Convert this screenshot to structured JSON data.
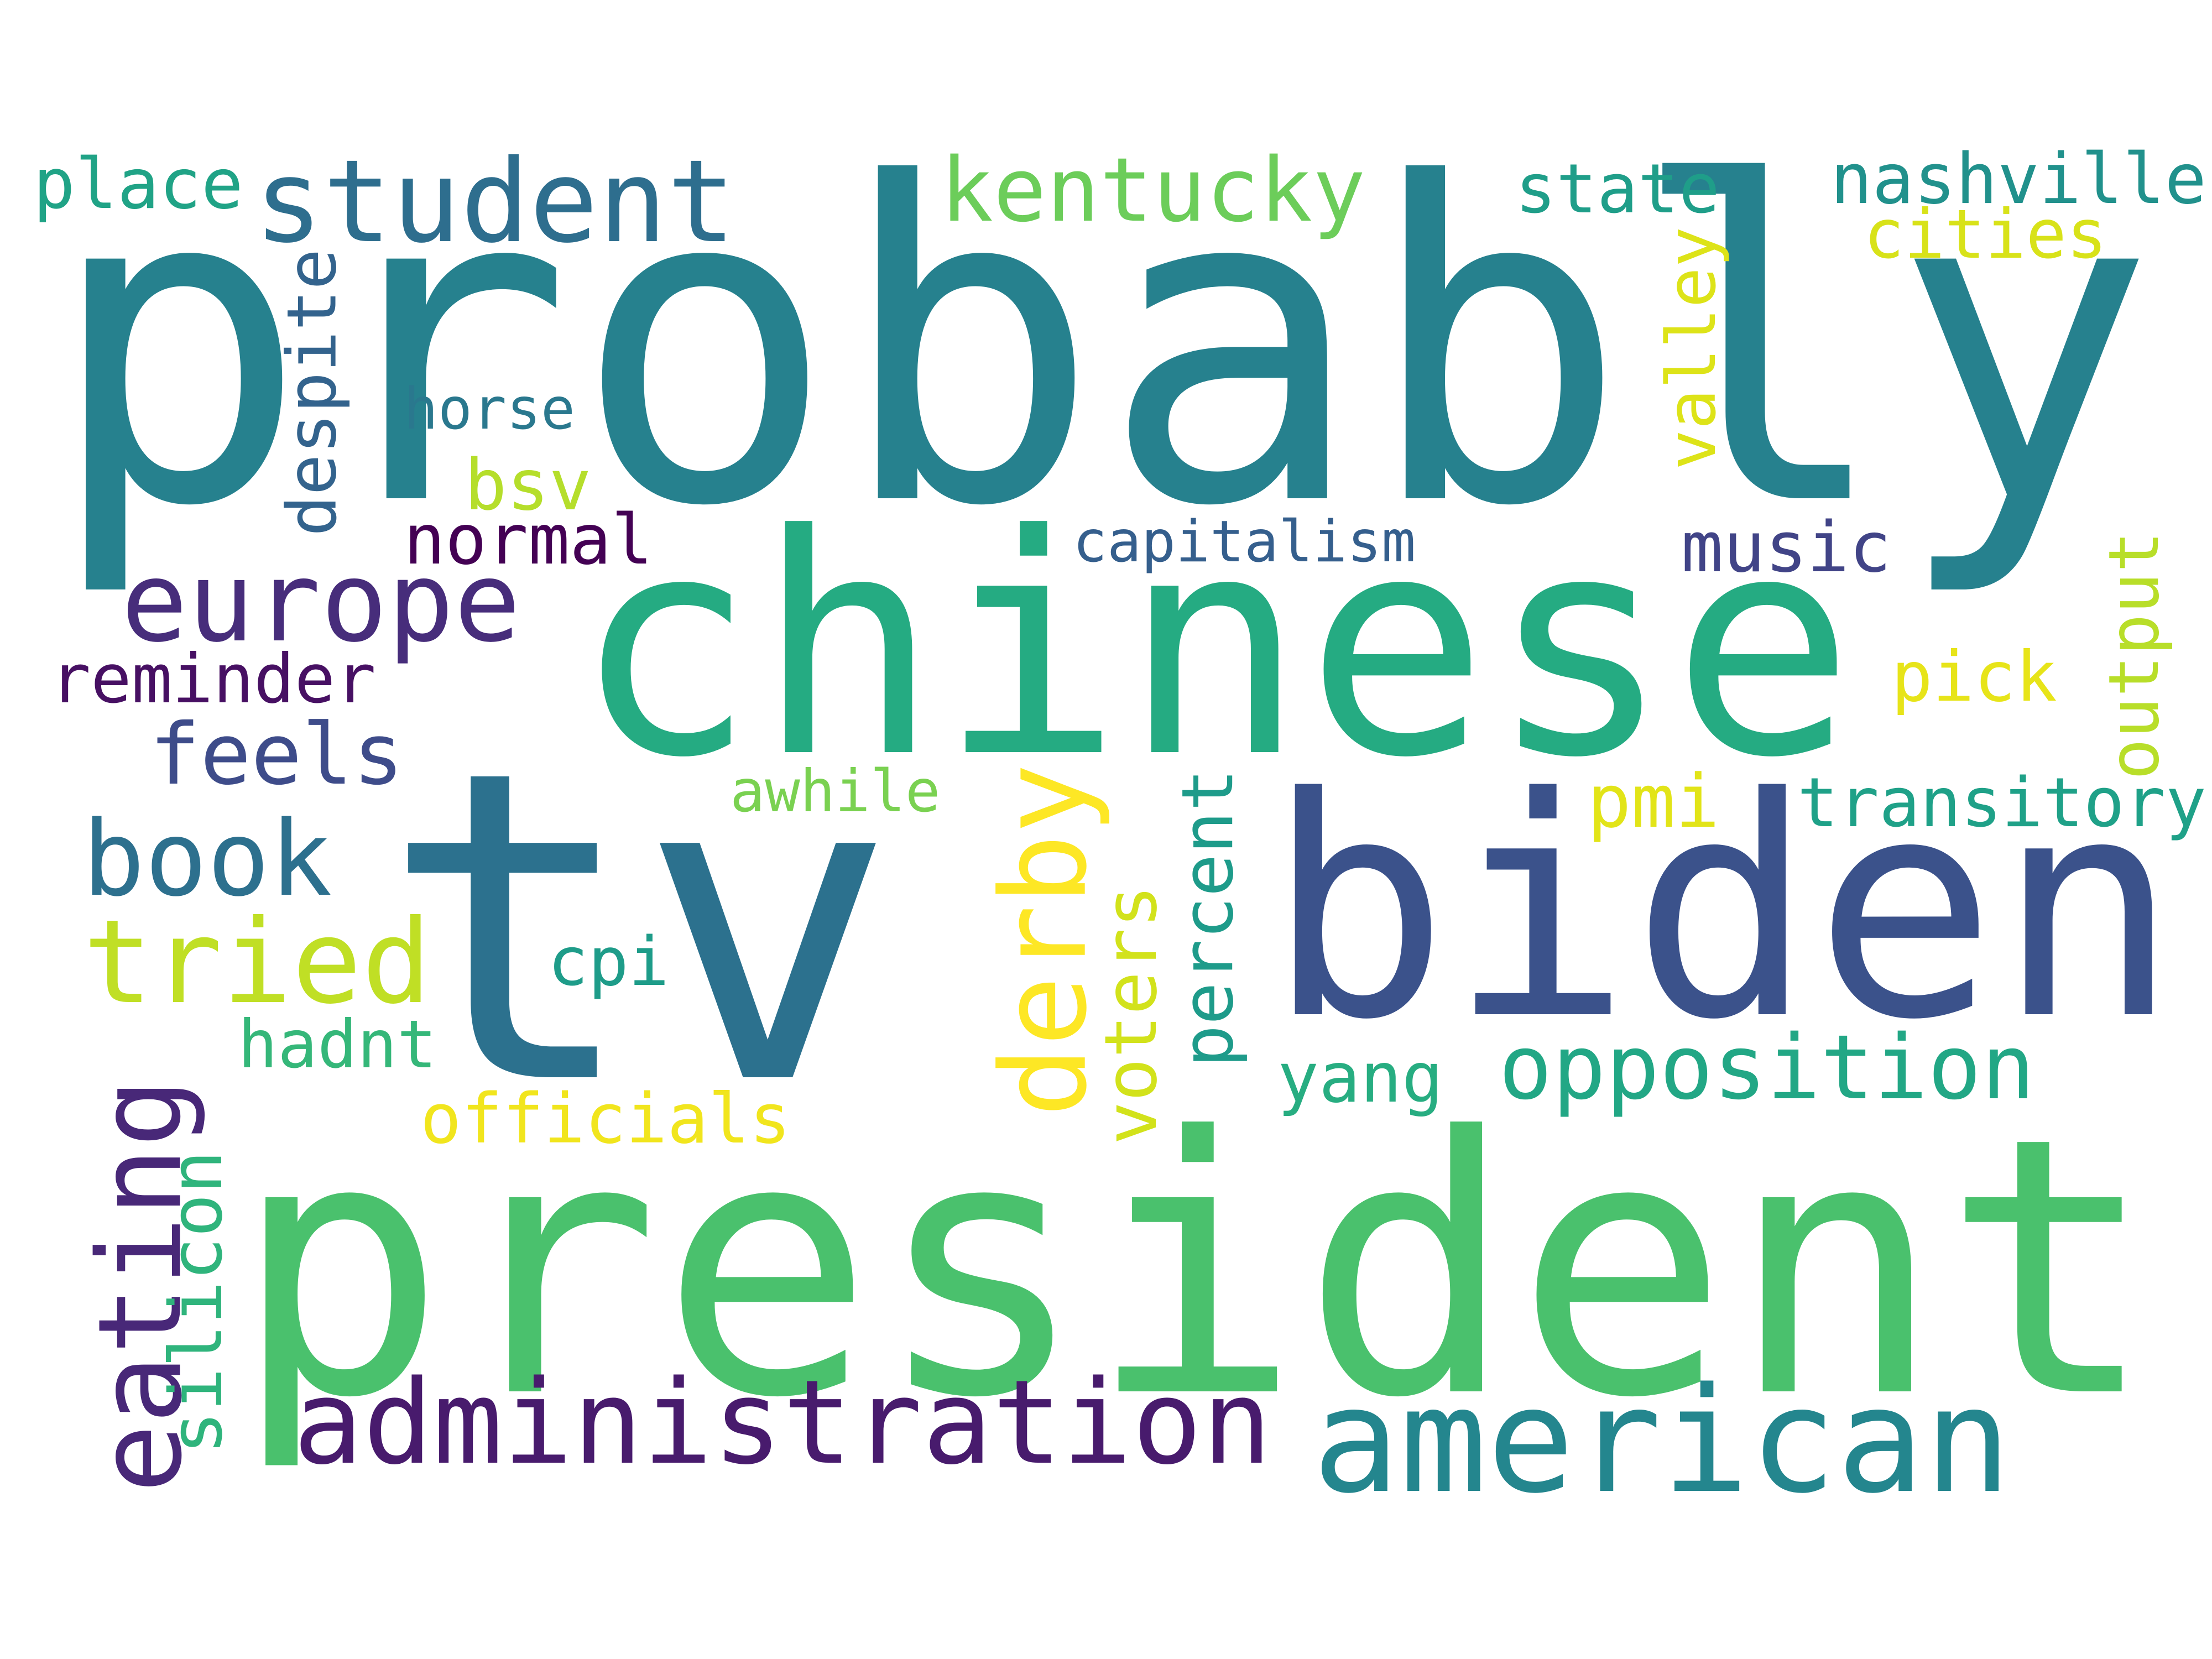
{
  "words": [
    {
      "text": "probably",
      "color": "#26818e"
    },
    {
      "text": "tv",
      "color": "#2c718e"
    },
    {
      "text": "president",
      "color": "#4ac16d"
    },
    {
      "text": "chinese",
      "color": "#25ab82"
    },
    {
      "text": "biden",
      "color": "#3b528b"
    },
    {
      "text": "american",
      "color": "#24868e"
    },
    {
      "text": "administration",
      "color": "#481b6d"
    },
    {
      "text": "student",
      "color": "#2e6e8e"
    },
    {
      "text": "europe",
      "color": "#472d7b"
    },
    {
      "text": "kentucky",
      "color": "#6ccd5a"
    },
    {
      "text": "book",
      "color": "#2d708e"
    },
    {
      "text": "tried",
      "color": "#c0df25"
    },
    {
      "text": "derby",
      "color": "#fde725"
    },
    {
      "text": "eating",
      "color": "#482878"
    },
    {
      "text": "opposition",
      "color": "#22a785"
    },
    {
      "text": "feels",
      "color": "#3e4c8a"
    },
    {
      "text": "nashville",
      "color": "#21918c"
    },
    {
      "text": "state",
      "color": "#1f9e89"
    },
    {
      "text": "place",
      "color": "#20a386"
    },
    {
      "text": "cities",
      "color": "#d8e219"
    },
    {
      "text": "valley",
      "color": "#dde318"
    },
    {
      "text": "despite",
      "color": "#33638d"
    },
    {
      "text": "horse",
      "color": "#2a788e"
    },
    {
      "text": "bsv",
      "color": "#b5de2b"
    },
    {
      "text": "normal",
      "color": "#440154"
    },
    {
      "text": "capitalism",
      "color": "#355f8d"
    },
    {
      "text": "music",
      "color": "#414487"
    },
    {
      "text": "output",
      "color": "#b8de29"
    },
    {
      "text": "reminder",
      "color": "#471063"
    },
    {
      "text": "pick",
      "color": "#e7e419"
    },
    {
      "text": "awhile",
      "color": "#7ad151"
    },
    {
      "text": "pmi",
      "color": "#e2e418"
    },
    {
      "text": "transitory",
      "color": "#1fa188"
    },
    {
      "text": "percent",
      "color": "#1e9b8a"
    },
    {
      "text": "voters",
      "color": "#d2e21b"
    },
    {
      "text": "cpi",
      "color": "#1e9c89"
    },
    {
      "text": "hadnt",
      "color": "#35b779"
    },
    {
      "text": "yang",
      "color": "#27ad81"
    },
    {
      "text": "officials",
      "color": "#f1e51d"
    },
    {
      "text": "silicon",
      "color": "#2fb47c"
    }
  ]
}
